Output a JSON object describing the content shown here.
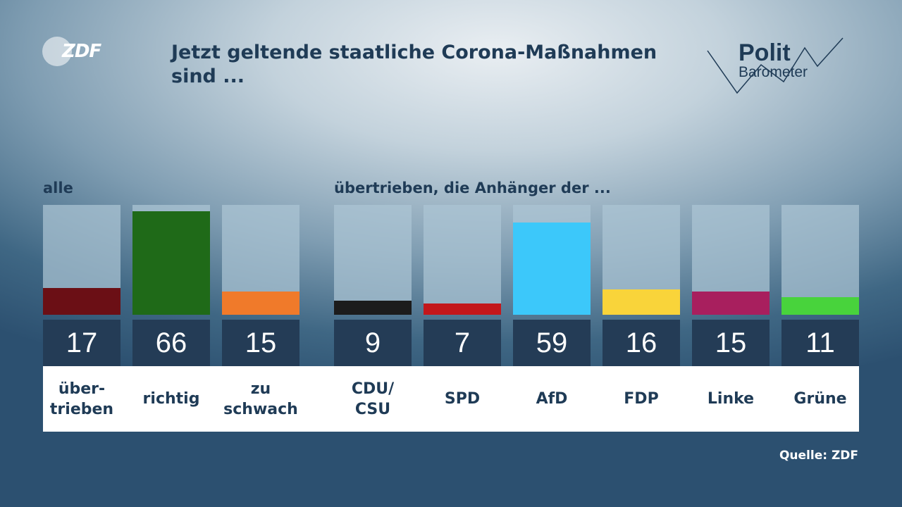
{
  "brand": {
    "logo_text": "ZDF",
    "politbarometer_line1": "Polit",
    "politbarometer_line2": "Barometer"
  },
  "source": "Quelle: ZDF",
  "chart_data": {
    "type": "bar",
    "title": "Jetzt geltende staatliche Corona-Maßnahmen sind ...",
    "ylim": [
      0,
      70
    ],
    "groups": [
      {
        "label": "alle",
        "categories": [
          "über-\ntrieben",
          "richtig",
          "zu\nschwach"
        ],
        "values": [
          17,
          66,
          15
        ],
        "colors": [
          "#6b0f15",
          "#1f6a18",
          "#f07a2a"
        ]
      },
      {
        "label": "übertrieben, die Anhänger der ...",
        "categories": [
          "CDU/\nCSU",
          "SPD",
          "AfD",
          "FDP",
          "Linke",
          "Grüne"
        ],
        "values": [
          9,
          7,
          59,
          16,
          15,
          11
        ],
        "colors": [
          "#1c1c1c",
          "#c3171b",
          "#3cc8fa",
          "#f9d43a",
          "#a81f5e",
          "#48d33c"
        ]
      }
    ]
  }
}
